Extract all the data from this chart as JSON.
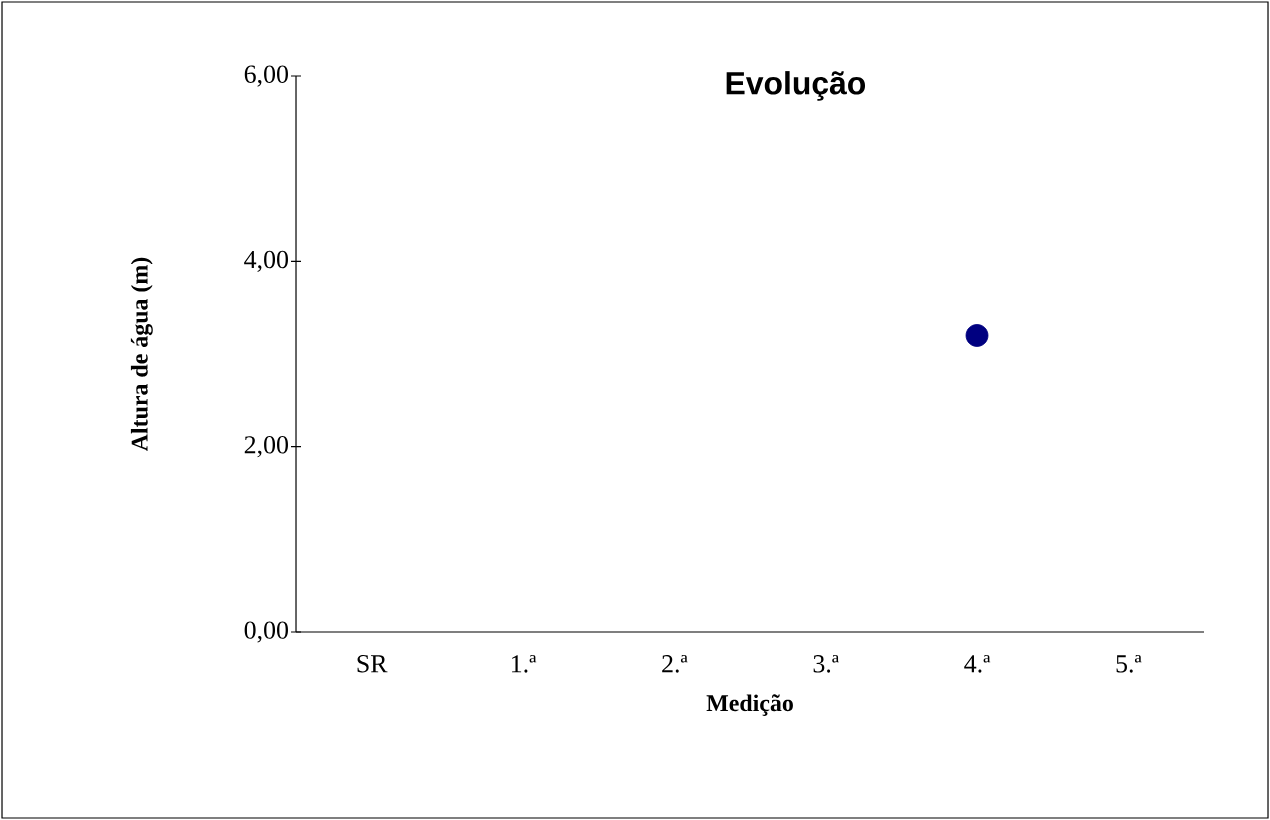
{
  "chart_data": {
    "type": "scatter",
    "title": "Evolução",
    "xlabel": "Medição",
    "ylabel": "Altura de água (m)",
    "categories": [
      "SR",
      "1.ª",
      "2.ª",
      "3.ª",
      "4.ª",
      "5.ª"
    ],
    "values": [
      null,
      null,
      null,
      null,
      3.2,
      null
    ],
    "color": "#000080",
    "marker": "circle",
    "ylim": [
      0,
      6
    ],
    "yticks": [
      {
        "value": 0,
        "label": "0,00"
      },
      {
        "value": 2,
        "label": "2,00"
      },
      {
        "value": 4,
        "label": "4,00"
      },
      {
        "value": 6,
        "label": "6,00"
      }
    ]
  }
}
